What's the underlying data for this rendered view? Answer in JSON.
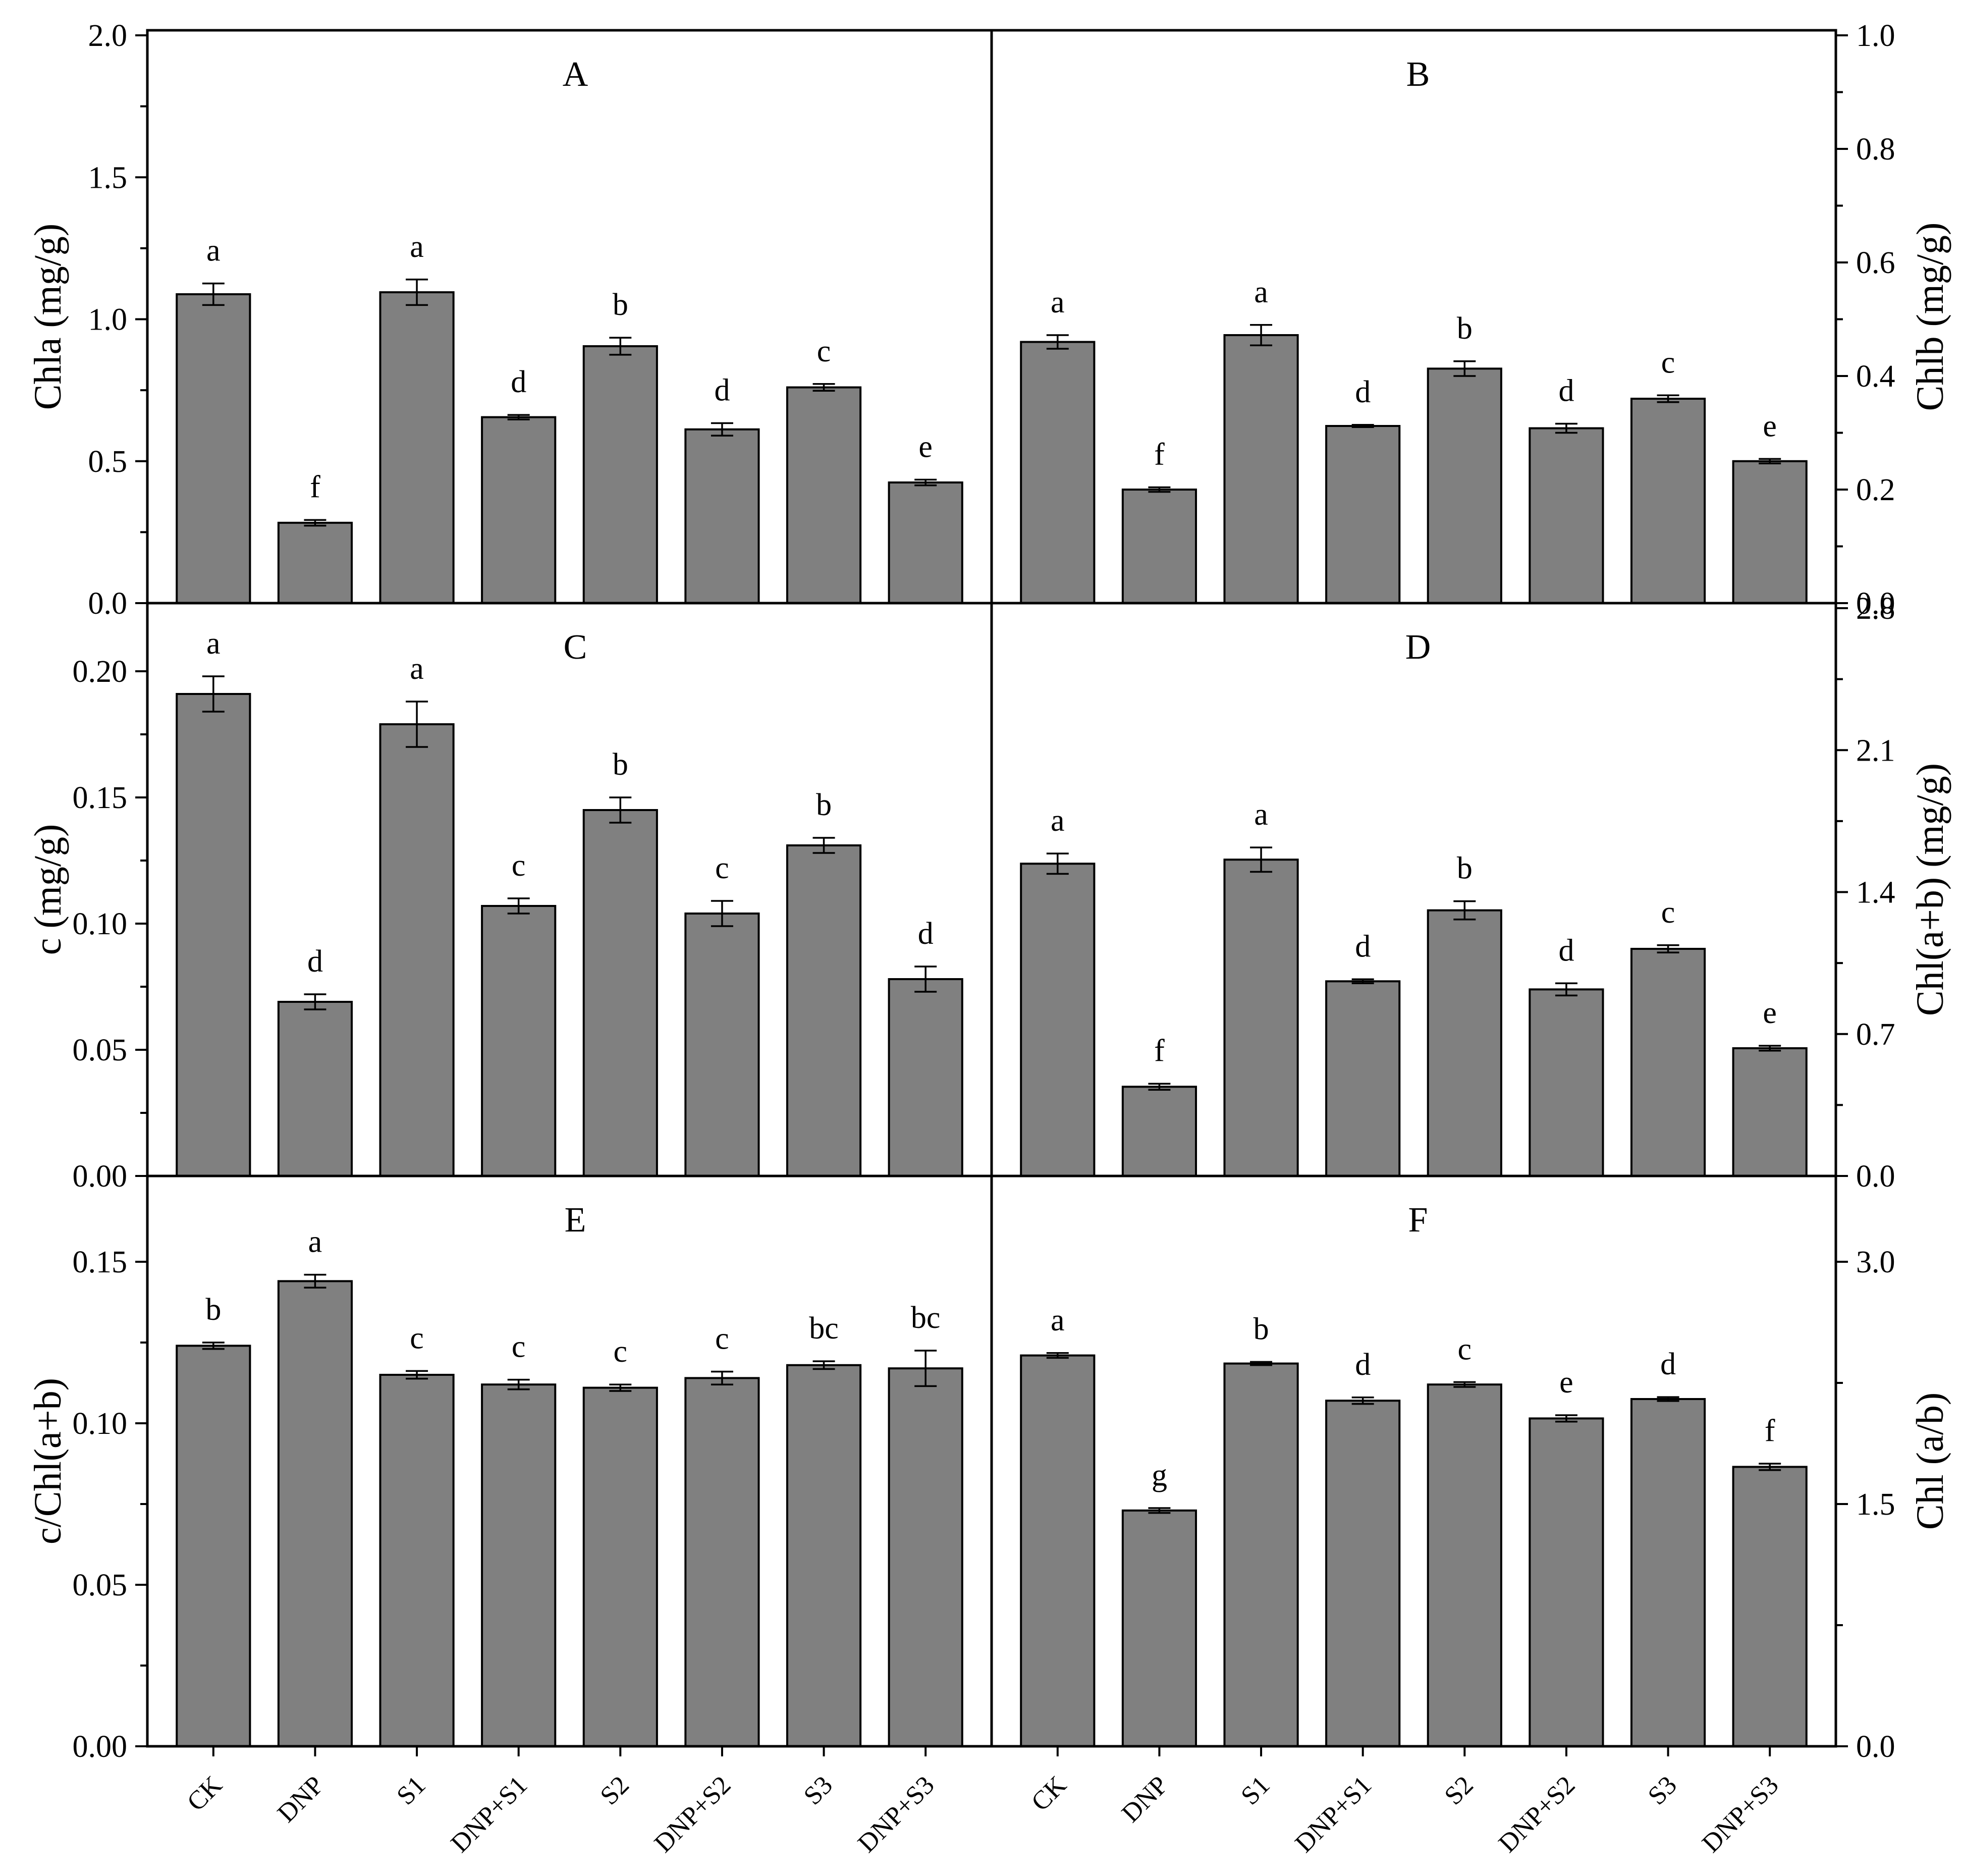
{
  "chart_data": {
    "type": "bar",
    "categories": [
      "CK",
      "DNP",
      "S1",
      "DNP+S1",
      "S2",
      "DNP+S2",
      "S3",
      "DNP+S3"
    ],
    "panels": [
      {
        "id": "A",
        "ylabel": "Chla (mg/g)",
        "ylim": [
          0,
          2.0
        ],
        "ticks": [
          "0.0",
          "0.5",
          "1.0",
          "1.5",
          "2.0"
        ],
        "tick_values": [
          0,
          0.5,
          1.0,
          1.5,
          2.0
        ],
        "values": [
          1.088,
          0.283,
          1.095,
          0.655,
          0.905,
          0.612,
          0.76,
          0.425
        ],
        "errors": [
          0.038,
          0.01,
          0.045,
          0.008,
          0.03,
          0.022,
          0.012,
          0.01
        ],
        "labels": [
          "a",
          "f",
          "a",
          "d",
          "b",
          "d",
          "c",
          "e"
        ]
      },
      {
        "id": "B",
        "ylabel": "Chlb (mg/g)",
        "ylim": [
          0,
          1.0
        ],
        "ticks": [
          "0.0",
          "0.2",
          "0.4",
          "0.6",
          "0.8",
          "1.0"
        ],
        "tick_values": [
          0,
          0.2,
          0.4,
          0.6,
          0.8,
          1.0
        ],
        "values": [
          0.46,
          0.2,
          0.472,
          0.312,
          0.413,
          0.308,
          0.36,
          0.25
        ],
        "errors": [
          0.012,
          0.004,
          0.018,
          0.002,
          0.013,
          0.008,
          0.006,
          0.004
        ],
        "labels": [
          "a",
          "f",
          "a",
          "d",
          "b",
          "d",
          "c",
          "e"
        ]
      },
      {
        "id": "C",
        "ylabel": "c (mg/g)",
        "ylim": [
          0,
          0.225
        ],
        "ticks": [
          "0.00",
          "0.05",
          "0.10",
          "0.15",
          "0.20"
        ],
        "tick_values": [
          0,
          0.05,
          0.1,
          0.15,
          0.2
        ],
        "values": [
          0.191,
          0.069,
          0.179,
          0.107,
          0.145,
          0.104,
          0.131,
          0.078
        ],
        "errors": [
          0.007,
          0.003,
          0.009,
          0.003,
          0.005,
          0.005,
          0.003,
          0.005
        ],
        "labels": [
          "a",
          "d",
          "a",
          "c",
          "b",
          "c",
          "b",
          "d"
        ]
      },
      {
        "id": "D",
        "ylabel": "Chl(a+b) (mg/g)",
        "ylim": [
          0,
          2.8
        ],
        "ticks": [
          "0.0",
          "0.7",
          "1.4",
          "2.1",
          "2.8"
        ],
        "tick_values": [
          0,
          0.7,
          1.4,
          2.1,
          2.8
        ],
        "values": [
          1.54,
          0.44,
          1.56,
          0.96,
          1.31,
          0.92,
          1.12,
          0.63
        ],
        "errors": [
          0.05,
          0.015,
          0.06,
          0.01,
          0.045,
          0.03,
          0.018,
          0.012
        ],
        "labels": [
          "a",
          "f",
          "a",
          "d",
          "b",
          "d",
          "c",
          "e"
        ]
      },
      {
        "id": "E",
        "ylabel": "c/Chl(a+b)",
        "ylim": [
          0,
          0.175
        ],
        "ticks": [
          "0.00",
          "0.05",
          "0.10",
          "0.15"
        ],
        "tick_values": [
          0,
          0.05,
          0.1,
          0.15
        ],
        "values": [
          0.124,
          0.144,
          0.115,
          0.112,
          0.111,
          0.114,
          0.118,
          0.117
        ],
        "errors": [
          0.001,
          0.002,
          0.0012,
          0.0015,
          0.001,
          0.002,
          0.0012,
          0.0055
        ],
        "labels": [
          "b",
          "a",
          "c",
          "c",
          "c",
          "c",
          "bc",
          "bc"
        ]
      },
      {
        "id": "F",
        "ylabel": "Chl (a/b)",
        "ylim": [
          0,
          3.5
        ],
        "ticks": [
          "0.0",
          "1.5",
          "3.0"
        ],
        "tick_values": [
          0,
          1.5,
          3.0
        ],
        "values": [
          2.42,
          1.46,
          2.37,
          2.14,
          2.24,
          2.03,
          2.15,
          1.73
        ],
        "errors": [
          0.015,
          0.015,
          0.01,
          0.02,
          0.015,
          0.02,
          0.012,
          0.02
        ],
        "labels": [
          "a",
          "g",
          "b",
          "d",
          "c",
          "e",
          "d",
          "f"
        ]
      }
    ]
  }
}
